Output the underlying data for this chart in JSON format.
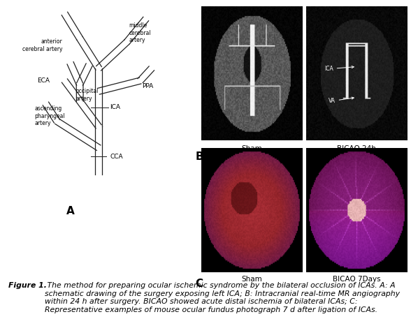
{
  "fig_width": 5.88,
  "fig_height": 4.67,
  "dpi": 100,
  "background_color": "#ffffff",
  "caption_bold_prefix": "Figure 1.",
  "caption_italic_text": " The method for preparing ocular ischemic syndrome by the bilateral occlusion of ICAs. A: A schematic drawing of the surgery exposing left ICA; B: Intracranial real-time MR angiography within 24 h after surgery. BICAO showed acute distal ischemia of bilateral ICAs; C: Representative examples of mouse ocular fundus photograph 7 d after ligation of ICAs.",
  "panel_A_label": "A",
  "panel_B_label": "B",
  "panel_C_label": "C",
  "label_B_left": "Sham",
  "label_B_right": "BICAO 24h",
  "label_C_left": "Sham",
  "label_C_right": "BICAO 7Days",
  "text_color": "#000000",
  "caption_fontsize": 7.8,
  "label_fontsize": 7.5,
  "panel_label_fontsize": 10,
  "schematic_fontsize": 6.0
}
